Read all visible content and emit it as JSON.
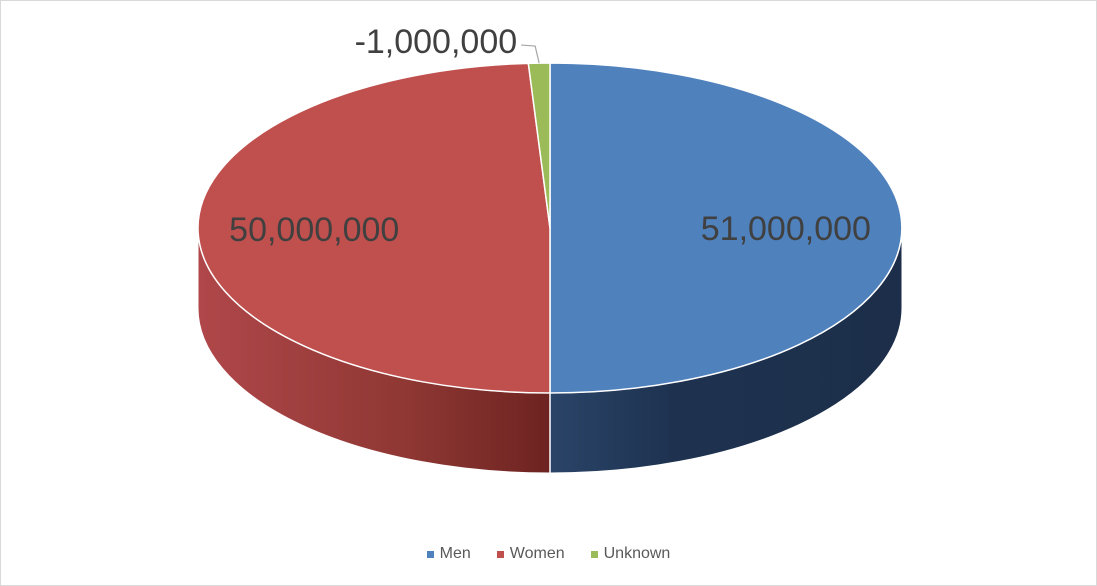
{
  "chart_data": {
    "type": "pie",
    "style": "3d",
    "categories": [
      "Men",
      "Women",
      "Unknown"
    ],
    "values": [
      51000000,
      50000000,
      -1000000
    ],
    "data_labels": [
      "51,000,000",
      "50,000,000",
      "-1,000,000"
    ],
    "colors": [
      "#4f81bd",
      "#c0504d",
      "#9bbb59"
    ],
    "title": "",
    "legend_position": "bottom"
  },
  "legend": {
    "items": [
      {
        "label": "Men",
        "color": "#4f81bd"
      },
      {
        "label": "Women",
        "color": "#c0504d"
      },
      {
        "label": "Unknown",
        "color": "#9bbb59"
      }
    ]
  }
}
